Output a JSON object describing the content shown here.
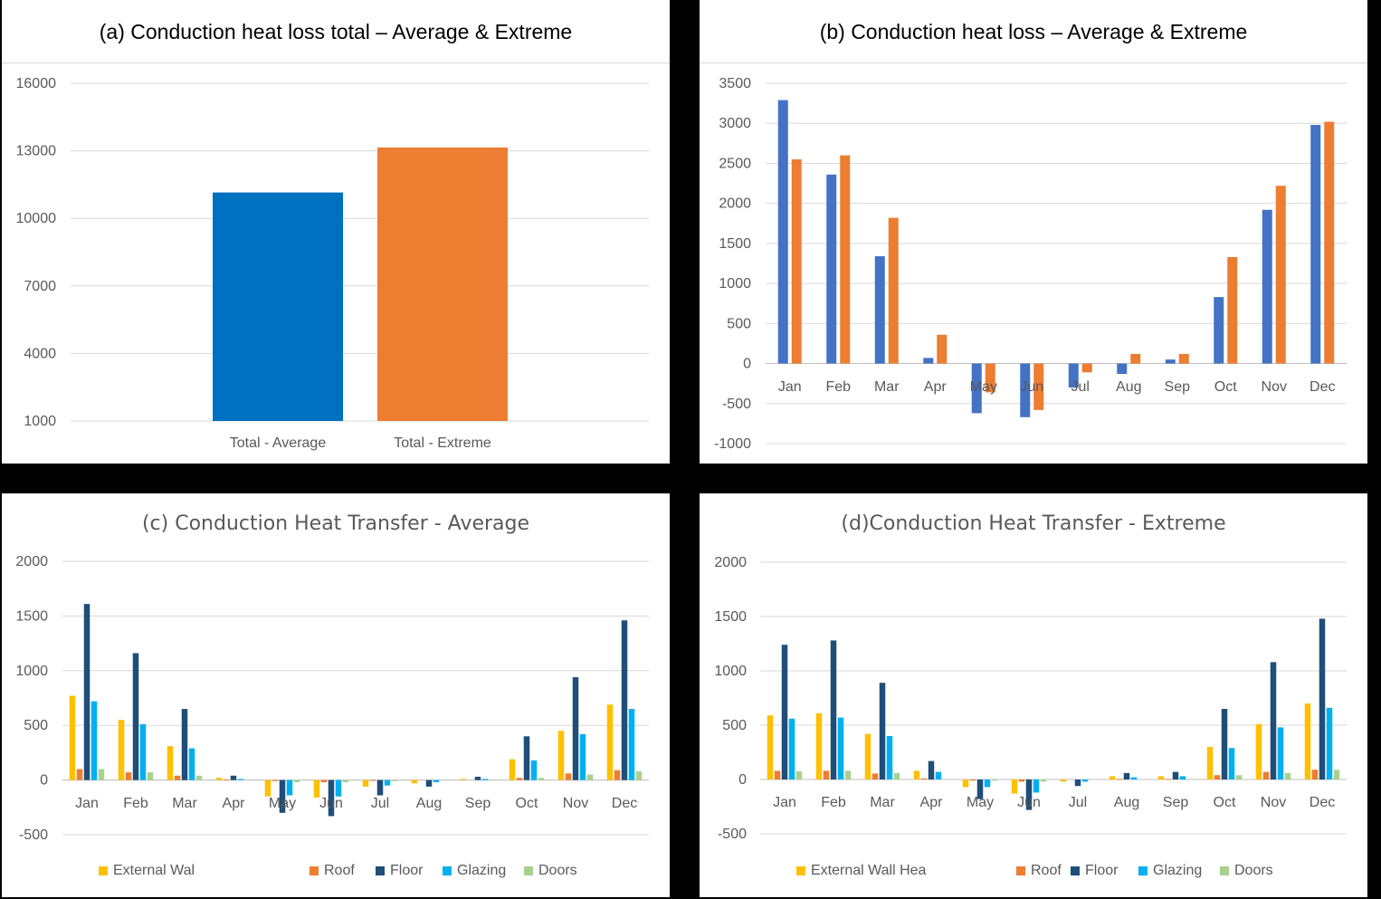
{
  "panels": {
    "a": {
      "title": "(a) Conduction heat loss total – Average & Extreme"
    },
    "b": {
      "title": "(b) Conduction heat loss – Average & Extreme"
    },
    "c": {
      "title": "(c) Conduction Heat Transfer - Average"
    },
    "d": {
      "title": "(d)Conduction Heat Transfer - Extreme"
    }
  },
  "colors": {
    "avg_total": "#0070c0",
    "ext_total": "#ed7d31",
    "avg_month": "#4472c4",
    "ext_month": "#ed7d31",
    "external_wall": "#ffc000",
    "roof": "#ed7d31",
    "floor": "#1f4e79",
    "glazing": "#00b0f0",
    "doors": "#a9d18e"
  },
  "chart_data": [
    {
      "id": "a",
      "type": "bar",
      "title": "(a) Conduction heat loss total – Average & Extreme",
      "categories": [
        "Total - Average",
        "Total - Extreme"
      ],
      "values": [
        11150,
        13150
      ],
      "ylim": [
        1000,
        16000
      ],
      "yticks": [
        16000,
        13000,
        10000,
        7000,
        4000,
        1000
      ],
      "grid": true
    },
    {
      "id": "b",
      "type": "bar",
      "title": "(b) Conduction heat loss – Average & Extreme",
      "categories": [
        "Jan",
        "Feb",
        "Mar",
        "Apr",
        "May",
        "Jun",
        "Jul",
        "Aug",
        "Sep",
        "Oct",
        "Nov",
        "Dec"
      ],
      "series": [
        {
          "values": [
            3290,
            2360,
            1340,
            70,
            -620,
            -670,
            -300,
            -130,
            50,
            830,
            1920,
            2980
          ]
        },
        {
          "values": [
            2550,
            2600,
            1820,
            360,
            -360,
            -580,
            -110,
            120,
            120,
            1330,
            2220,
            3020
          ]
        }
      ],
      "ylim": [
        -1000,
        3500
      ],
      "yticks": [
        3500,
        3000,
        2500,
        2000,
        1500,
        1000,
        500,
        0,
        -500,
        -1000
      ],
      "grid": true
    },
    {
      "id": "c",
      "type": "bar",
      "title": "(c) Conduction Heat Transfer - Average",
      "categories": [
        "Jan",
        "Feb",
        "Mar",
        "Apr",
        "May",
        "Jun",
        "Jul",
        "Aug",
        "Sep",
        "Oct",
        "Nov",
        "Dec"
      ],
      "series": [
        {
          "name": "External Wal",
          "values": [
            770,
            550,
            310,
            20,
            -150,
            -160,
            -60,
            -30,
            10,
            190,
            450,
            690
          ]
        },
        {
          "name": "Roof",
          "values": [
            100,
            70,
            40,
            5,
            -10,
            -20,
            -5,
            0,
            0,
            20,
            60,
            90
          ]
        },
        {
          "name": "Floor",
          "values": [
            1610,
            1160,
            650,
            40,
            -300,
            -330,
            -140,
            -60,
            30,
            400,
            940,
            1460
          ]
        },
        {
          "name": "Glazing",
          "values": [
            720,
            510,
            290,
            10,
            -140,
            -150,
            -50,
            -20,
            10,
            180,
            420,
            650
          ]
        },
        {
          "name": "Doors",
          "values": [
            100,
            70,
            40,
            0,
            -20,
            -20,
            -10,
            0,
            0,
            20,
            50,
            80
          ]
        }
      ],
      "ylim": [
        -500,
        2000
      ],
      "yticks": [
        2000,
        1500,
        1000,
        500,
        0,
        -500
      ],
      "legend": "bottom",
      "grid": true
    },
    {
      "id": "d",
      "type": "bar",
      "title": "(d)Conduction Heat Transfer - Extreme",
      "categories": [
        "Jan",
        "Feb",
        "Mar",
        "Apr",
        "May",
        "Jun",
        "Jul",
        "Aug",
        "Sep",
        "Oct",
        "Nov",
        "Dec"
      ],
      "series": [
        {
          "name": "External Wall Hea",
          "values": [
            590,
            610,
            420,
            80,
            -70,
            -130,
            -20,
            30,
            30,
            300,
            510,
            700
          ]
        },
        {
          "name": "Roof",
          "values": [
            80,
            80,
            55,
            10,
            -10,
            -20,
            0,
            5,
            5,
            40,
            70,
            90
          ]
        },
        {
          "name": "Floor",
          "values": [
            1240,
            1280,
            890,
            170,
            -180,
            -280,
            -60,
            60,
            70,
            650,
            1080,
            1480
          ]
        },
        {
          "name": "Glazing",
          "values": [
            560,
            570,
            400,
            70,
            -70,
            -120,
            -20,
            20,
            30,
            290,
            480,
            660
          ]
        },
        {
          "name": "Doors",
          "values": [
            75,
            80,
            60,
            0,
            -10,
            -20,
            0,
            0,
            0,
            40,
            60,
            90
          ]
        }
      ],
      "ylim": [
        -500,
        2000
      ],
      "yticks": [
        2000,
        1500,
        1000,
        500,
        0,
        -500
      ],
      "legend": "bottom",
      "grid": true
    }
  ]
}
